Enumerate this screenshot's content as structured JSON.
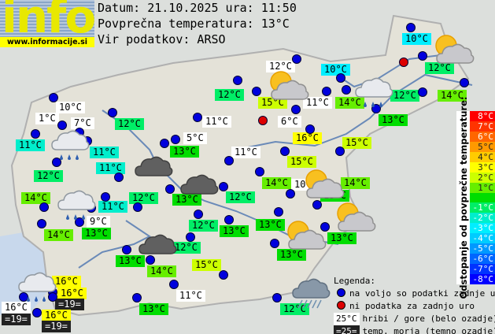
{
  "header": {
    "logo_word": "info",
    "logo_url": "www.informacije.si",
    "date_line": "Datum: 21.10.2025 ura: 11:50",
    "avg_line": "Povprečna temperatura: 13°C",
    "source_line": "Vir podatkov: ARSO"
  },
  "average_temp": 13,
  "colors": {
    "station_dot": "#0000dd",
    "missing_dot": "#dd0000",
    "mountain_bg": "#ffffff",
    "sea_bg": "#222222"
  },
  "labels": [
    {
      "t": "10°C",
      "k": "val",
      "v": 10
    },
    {
      "t": "12°C",
      "k": "val",
      "v": 12
    },
    {
      "t": "14°C",
      "k": "val",
      "v": 14
    },
    {
      "t": "12°C",
      "k": "val",
      "v": 12
    },
    {
      "t": "10°C",
      "k": "val",
      "v": 10
    },
    {
      "t": "14°C",
      "k": "val",
      "v": 14
    },
    {
      "t": "13°C",
      "k": "val",
      "v": 13
    },
    {
      "t": "15°C",
      "k": "val",
      "v": 15
    },
    {
      "t": "12°C",
      "k": "mtn"
    },
    {
      "t": "12°C",
      "k": "val",
      "v": 12
    },
    {
      "t": "15°C",
      "k": "val",
      "v": 15
    },
    {
      "t": "11°C",
      "k": "mtn"
    },
    {
      "t": "6°C",
      "k": "mtn"
    },
    {
      "t": "11°C",
      "k": "mtn"
    },
    {
      "t": "5°C",
      "k": "mtn"
    },
    {
      "t": "13°C",
      "k": "val",
      "v": 13
    },
    {
      "t": "16°C",
      "k": "val",
      "v": 16
    },
    {
      "t": "11°C",
      "k": "mtn"
    },
    {
      "t": "15°C",
      "k": "val",
      "v": 15
    },
    {
      "t": "14°C",
      "k": "val",
      "v": 14
    },
    {
      "t": "10°C",
      "k": "mtn"
    },
    {
      "t": "12°C",
      "k": "val",
      "v": 12
    },
    {
      "t": "13°C",
      "k": "val",
      "v": 13
    },
    {
      "t": "13°C",
      "k": "val",
      "v": 13
    },
    {
      "t": "14°C",
      "k": "val",
      "v": 14
    },
    {
      "t": "10°C",
      "k": "mtn"
    },
    {
      "t": "1°C",
      "k": "mtn"
    },
    {
      "t": "7°C",
      "k": "mtn"
    },
    {
      "t": "12°C",
      "k": "val",
      "v": 12
    },
    {
      "t": "11°C",
      "k": "val",
      "v": 11
    },
    {
      "t": "11°C",
      "k": "val",
      "v": 11
    },
    {
      "t": "11°C",
      "k": "val",
      "v": 11
    },
    {
      "t": "12°C",
      "k": "val",
      "v": 12
    },
    {
      "t": "14°C",
      "k": "val",
      "v": 14
    },
    {
      "t": "11°C",
      "k": "val",
      "v": 11
    },
    {
      "t": "12°C",
      "k": "val",
      "v": 12
    },
    {
      "t": "9°C",
      "k": "mtn"
    },
    {
      "t": "14°C",
      "k": "val",
      "v": 14
    },
    {
      "t": "13°C",
      "k": "val",
      "v": 13
    },
    {
      "t": "13°C",
      "k": "val",
      "v": 13
    },
    {
      "t": "14°C",
      "k": "val",
      "v": 14
    },
    {
      "t": "16°C",
      "k": "val",
      "v": 16
    },
    {
      "t": "16°C",
      "k": "val",
      "v": 16
    },
    {
      "t": "=19=",
      "k": "sea"
    },
    {
      "t": "16°C",
      "k": "mtn"
    },
    {
      "t": "=19=",
      "k": "sea"
    },
    {
      "t": "16°C",
      "k": "val",
      "v": 16
    },
    {
      "t": "=19=",
      "k": "sea"
    },
    {
      "t": "13°C",
      "k": "val",
      "v": 13
    },
    {
      "t": "12°C",
      "k": "val",
      "v": 12
    },
    {
      "t": "13°C",
      "k": "val",
      "v": 13
    },
    {
      "t": "13°C",
      "k": "val",
      "v": 13
    },
    {
      "t": "13°C",
      "k": "val",
      "v": 13
    },
    {
      "t": "13°C",
      "k": "val",
      "v": 13
    },
    {
      "t": "12°C",
      "k": "val",
      "v": 12
    },
    {
      "t": "15°C",
      "k": "val",
      "v": 15
    },
    {
      "t": "11°C",
      "k": "mtn"
    },
    {
      "t": "12°C",
      "k": "val",
      "v": 12
    }
  ],
  "weather_icons": [
    "sun-cloud",
    "rain-cloud",
    "sun-cloud",
    "sun-cloud",
    "dark-cloud",
    "dark-cloud",
    "rain-cloud",
    "rain-cloud",
    "dark-cloud",
    "sun-cloud",
    "sun-cloud",
    "rain-cloud",
    "storm-rain-cloud"
  ],
  "scale": {
    "title": "Odstopanje od povprečne temperature:",
    "cells": [
      {
        "label": "8°C",
        "color": "#ff0000"
      },
      {
        "label": "7°C",
        "color": "#ff3300"
      },
      {
        "label": "6°C",
        "color": "#ff6600"
      },
      {
        "label": "5°C",
        "color": "#ff9900"
      },
      {
        "label": "4°C",
        "color": "#ffcc00"
      },
      {
        "label": "3°C",
        "color": "#ffff00"
      },
      {
        "label": "2°C",
        "color": "#ccff00"
      },
      {
        "label": "1°C",
        "color": "#66ee00"
      },
      {
        "label": "",
        "color": "#00dd00"
      },
      {
        "label": "-1°C",
        "color": "#00ee66"
      },
      {
        "label": "-2°C",
        "color": "#00eecc"
      },
      {
        "label": "-3°C",
        "color": "#00eeff"
      },
      {
        "label": "-4°C",
        "color": "#00ccff"
      },
      {
        "label": "-5°C",
        "color": "#0099ff"
      },
      {
        "label": "-6°C",
        "color": "#0066ff"
      },
      {
        "label": "-7°C",
        "color": "#0033ff"
      },
      {
        "label": "-8°C",
        "color": "#0000ff"
      }
    ]
  },
  "legend": {
    "title": "Legenda:",
    "available": "na voljo so podatki zadnje ure",
    "missing": "ni podatka za zadnjo uro",
    "mountain_sample": "25°C",
    "mountain_text": "hribi / gore (belo ozadje)",
    "sea_sample": "=25=",
    "sea_text": "temp. morja (temno ozadje)"
  }
}
